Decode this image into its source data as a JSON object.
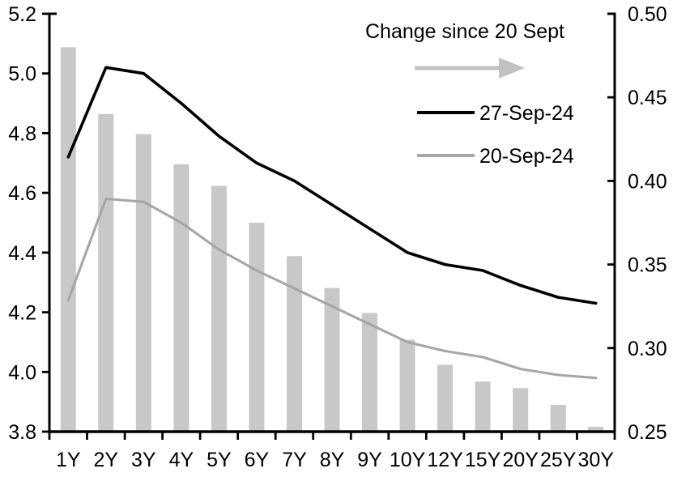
{
  "chart_data": {
    "type": "combo-bar-line",
    "title": "",
    "categories": [
      "1Y",
      "2Y",
      "3Y",
      "4Y",
      "5Y",
      "6Y",
      "7Y",
      "8Y",
      "9Y",
      "10Y",
      "12Y",
      "15Y",
      "20Y",
      "25Y",
      "30Y"
    ],
    "series": [
      {
        "name": "Change since 20 Sept",
        "type": "bar",
        "axis": "right",
        "color": "#c8c8c8",
        "values": [
          0.48,
          0.44,
          0.428,
          0.41,
          0.397,
          0.375,
          0.355,
          0.336,
          0.321,
          0.305,
          0.29,
          0.28,
          0.276,
          0.266,
          0.253
        ]
      },
      {
        "name": "27-Sep-24",
        "type": "line",
        "axis": "left",
        "color": "#000000",
        "values": [
          4.72,
          5.02,
          5.0,
          4.9,
          4.79,
          4.7,
          4.64,
          4.56,
          4.48,
          4.4,
          4.36,
          4.34,
          4.29,
          4.25,
          4.23
        ]
      },
      {
        "name": "20-Sep-24",
        "type": "line",
        "axis": "left",
        "color": "#a6a6a6",
        "values": [
          4.24,
          4.58,
          4.57,
          4.5,
          4.41,
          4.34,
          4.28,
          4.22,
          4.16,
          4.1,
          4.07,
          4.05,
          4.01,
          3.99,
          3.98
        ]
      }
    ],
    "axes": {
      "left": {
        "min": 3.8,
        "max": 5.2,
        "step": 0.2,
        "labels": [
          "5.2",
          "5.0",
          "4.8",
          "4.6",
          "4.4",
          "4.2",
          "4.0",
          "3.8"
        ]
      },
      "right": {
        "min": 0.25,
        "max": 0.5,
        "step": 0.05,
        "labels": [
          "0.50",
          "0.45",
          "0.40",
          "0.35",
          "0.30",
          "0.25"
        ]
      }
    },
    "legend": {
      "title": "Change since 20 Sept",
      "arrow_color": "#c2c2c2",
      "entries": [
        {
          "label": "27-Sep-24",
          "color": "#000000"
        },
        {
          "label": "20-Sep-24",
          "color": "#a8a8a8"
        }
      ]
    },
    "grid": false,
    "legend_position": "top-right-inside",
    "background": "#ffffff"
  }
}
